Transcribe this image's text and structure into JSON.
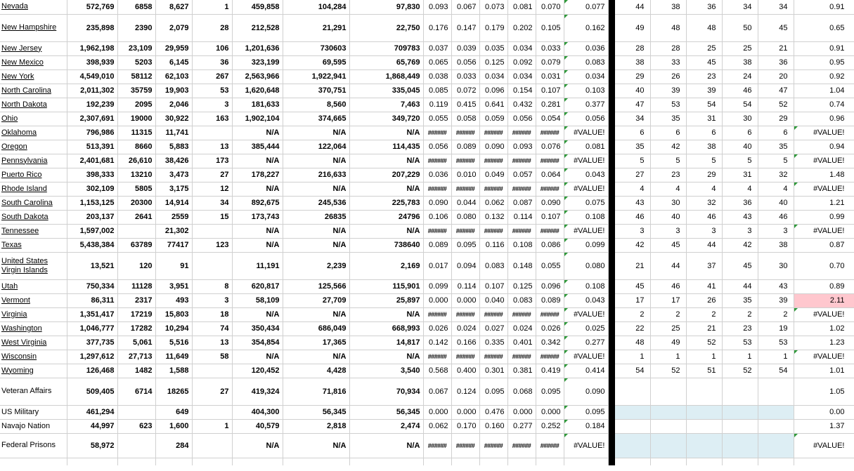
{
  "app": {
    "description": "Excel-style spreadsheet of state vaccination statistics with rank columns"
  },
  "colors": {
    "gridline": "#d0d0d0",
    "divider_bar": "#000000",
    "error_triangle_green": "#2e9939",
    "highlight_pink": "#ffc7ce",
    "highlight_light_blue": "#ddeef4",
    "text": "#000000"
  },
  "table": {
    "rows": [
      {
        "label": "Nevada",
        "underline": true,
        "two_line": false,
        "blue_ranks": false,
        "t_pink": false,
        "cells": [
          "572,769",
          "6858",
          "8,627",
          "1",
          "459,858",
          "104,284",
          "97,830",
          "0.093",
          "0.067",
          "0.073",
          "0.081",
          "0.070",
          "0.077",
          "44",
          "38",
          "36",
          "34",
          "34",
          "0.91"
        ]
      },
      {
        "label": "New Hampshire",
        "underline": true,
        "two_line": true,
        "blue_ranks": false,
        "t_pink": false,
        "cells": [
          "235,898",
          "2390",
          "2,079",
          "28",
          "212,528",
          "21,291",
          "22,750",
          "0.176",
          "0.147",
          "0.179",
          "0.202",
          "0.105",
          "0.162",
          "49",
          "48",
          "48",
          "50",
          "45",
          "0.65"
        ]
      },
      {
        "label": "New Jersey",
        "underline": true,
        "two_line": false,
        "blue_ranks": false,
        "t_pink": false,
        "cells": [
          "1,962,198",
          "23,109",
          "29,959",
          "106",
          "1,201,636",
          "730603",
          "709783",
          "0.037",
          "0.039",
          "0.035",
          "0.034",
          "0.033",
          "0.036",
          "28",
          "28",
          "25",
          "25",
          "21",
          "0.91"
        ]
      },
      {
        "label": "New Mexico",
        "underline": true,
        "two_line": false,
        "blue_ranks": false,
        "t_pink": false,
        "cells": [
          "398,939",
          "5203",
          "6,145",
          "36",
          "323,199",
          "69,595",
          "65,769",
          "0.065",
          "0.056",
          "0.125",
          "0.092",
          "0.079",
          "0.083",
          "38",
          "33",
          "45",
          "38",
          "36",
          "0.95"
        ]
      },
      {
        "label": "New York",
        "underline": true,
        "two_line": false,
        "blue_ranks": false,
        "t_pink": false,
        "cells": [
          "4,549,010",
          "58112",
          "62,103",
          "267",
          "2,563,966",
          "1,922,941",
          "1,868,449",
          "0.038",
          "0.033",
          "0.034",
          "0.034",
          "0.031",
          "0.034",
          "29",
          "26",
          "23",
          "24",
          "20",
          "0.92"
        ]
      },
      {
        "label": "North Carolina",
        "underline": true,
        "two_line": false,
        "blue_ranks": false,
        "t_pink": false,
        "cells": [
          "2,011,302",
          "35759",
          "19,903",
          "53",
          "1,620,648",
          "370,751",
          "335,045",
          "0.085",
          "0.072",
          "0.096",
          "0.154",
          "0.107",
          "0.103",
          "40",
          "39",
          "39",
          "46",
          "47",
          "1.04"
        ]
      },
      {
        "label": "North Dakota",
        "underline": true,
        "two_line": false,
        "blue_ranks": false,
        "t_pink": false,
        "cells": [
          "192,239",
          "2095",
          "2,046",
          "3",
          "181,633",
          "8,560",
          "7,463",
          "0.119",
          "0.415",
          "0.641",
          "0.432",
          "0.281",
          "0.377",
          "47",
          "53",
          "54",
          "54",
          "52",
          "0.74"
        ]
      },
      {
        "label": "Ohio",
        "underline": true,
        "two_line": false,
        "blue_ranks": false,
        "t_pink": false,
        "cells": [
          "2,307,691",
          "19000",
          "30,922",
          "163",
          "1,902,104",
          "374,665",
          "349,720",
          "0.055",
          "0.058",
          "0.059",
          "0.056",
          "0.054",
          "0.056",
          "34",
          "35",
          "31",
          "30",
          "29",
          "0.96"
        ]
      },
      {
        "label": "Oklahoma",
        "underline": true,
        "two_line": false,
        "blue_ranks": false,
        "t_pink": false,
        "cells": [
          "796,986",
          "11315",
          "11,741",
          "",
          "N/A",
          "N/A",
          "N/A",
          "######",
          "######",
          "######",
          "######",
          "######",
          "#VALUE!",
          "6",
          "6",
          "6",
          "6",
          "6",
          "#VALUE!"
        ]
      },
      {
        "label": "Oregon",
        "underline": true,
        "two_line": false,
        "blue_ranks": false,
        "t_pink": false,
        "cells": [
          "513,391",
          "8660",
          "5,883",
          "13",
          "385,444",
          "122,064",
          "114,435",
          "0.056",
          "0.089",
          "0.090",
          "0.093",
          "0.076",
          "0.081",
          "35",
          "42",
          "38",
          "40",
          "35",
          "0.94"
        ]
      },
      {
        "label": "Pennsylvania",
        "underline": true,
        "two_line": false,
        "blue_ranks": false,
        "t_pink": false,
        "cells": [
          "2,401,681",
          "26,610",
          "38,426",
          "173",
          "N/A",
          "N/A",
          "N/A",
          "######",
          "######",
          "######",
          "######",
          "######",
          "#VALUE!",
          "5",
          "5",
          "5",
          "5",
          "5",
          "#VALUE!"
        ]
      },
      {
        "label": "Puerto Rico",
        "underline": true,
        "two_line": false,
        "blue_ranks": false,
        "t_pink": false,
        "cells": [
          "398,333",
          "13210",
          "3,473",
          "27",
          "178,227",
          "216,633",
          "207,229",
          "0.036",
          "0.010",
          "0.049",
          "0.057",
          "0.064",
          "0.043",
          "27",
          "23",
          "29",
          "31",
          "32",
          "1.48"
        ]
      },
      {
        "label": "Rhode Island",
        "underline": true,
        "two_line": false,
        "blue_ranks": false,
        "t_pink": false,
        "cells": [
          "302,109",
          "5805",
          "3,175",
          "12",
          "N/A",
          "N/A",
          "N/A",
          "######",
          "######",
          "######",
          "######",
          "######",
          "#VALUE!",
          "4",
          "4",
          "4",
          "4",
          "4",
          "#VALUE!"
        ]
      },
      {
        "label": "South Carolina",
        "underline": true,
        "two_line": false,
        "blue_ranks": false,
        "t_pink": false,
        "cells": [
          "1,153,125",
          "20300",
          "14,914",
          "34",
          "892,675",
          "245,536",
          "225,783",
          "0.090",
          "0.044",
          "0.062",
          "0.087",
          "0.090",
          "0.075",
          "43",
          "30",
          "32",
          "36",
          "40",
          "1.21"
        ]
      },
      {
        "label": "South Dakota",
        "underline": true,
        "two_line": false,
        "blue_ranks": false,
        "t_pink": false,
        "cells": [
          "203,137",
          "2641",
          "2559",
          "15",
          "173,743",
          "26835",
          "24796",
          "0.106",
          "0.080",
          "0.132",
          "0.114",
          "0.107",
          "0.108",
          "46",
          "40",
          "46",
          "43",
          "46",
          "0.99"
        ]
      },
      {
        "label": "Tennessee",
        "underline": true,
        "two_line": false,
        "blue_ranks": false,
        "t_pink": false,
        "cells": [
          "1,597,002",
          "",
          "21,302",
          "",
          "N/A",
          "N/A",
          "N/A",
          "######",
          "######",
          "######",
          "######",
          "######",
          "#VALUE!",
          "3",
          "3",
          "3",
          "3",
          "3",
          "#VALUE!"
        ]
      },
      {
        "label": "Texas",
        "underline": true,
        "two_line": false,
        "blue_ranks": false,
        "t_pink": false,
        "cells": [
          "5,438,384",
          "63789",
          "77417",
          "123",
          "N/A",
          "N/A",
          "738640",
          "0.089",
          "0.095",
          "0.116",
          "0.108",
          "0.086",
          "0.099",
          "42",
          "45",
          "44",
          "42",
          "38",
          "0.87"
        ]
      },
      {
        "label": "United States Virgin Islands",
        "underline": true,
        "two_line": true,
        "blue_ranks": false,
        "t_pink": false,
        "cells": [
          "13,521",
          "120",
          "91",
          "",
          "11,191",
          "2,239",
          "2,169",
          "0.017",
          "0.094",
          "0.083",
          "0.148",
          "0.055",
          "0.080",
          "21",
          "44",
          "37",
          "45",
          "30",
          "0.70"
        ]
      },
      {
        "label": "Utah",
        "underline": true,
        "two_line": false,
        "blue_ranks": false,
        "t_pink": false,
        "cells": [
          "750,334",
          "11128",
          "3,951",
          "8",
          "620,817",
          "125,566",
          "115,901",
          "0.099",
          "0.114",
          "0.107",
          "0.125",
          "0.096",
          "0.108",
          "45",
          "46",
          "41",
          "44",
          "43",
          "0.89"
        ]
      },
      {
        "label": "Vermont",
        "underline": true,
        "two_line": false,
        "blue_ranks": false,
        "t_pink": true,
        "cells": [
          "86,311",
          "2317",
          "493",
          "3",
          "58,109",
          "27,709",
          "25,897",
          "0.000",
          "0.000",
          "0.040",
          "0.083",
          "0.089",
          "0.043",
          "17",
          "17",
          "26",
          "35",
          "39",
          "2.11"
        ]
      },
      {
        "label": "Virginia",
        "underline": true,
        "two_line": false,
        "blue_ranks": false,
        "t_pink": false,
        "cells": [
          "1,351,417",
          "17219",
          "15,803",
          "18",
          "N/A",
          "N/A",
          "N/A",
          "######",
          "######",
          "######",
          "######",
          "######",
          "#VALUE!",
          "2",
          "2",
          "2",
          "2",
          "2",
          "#VALUE!"
        ]
      },
      {
        "label": "Washington",
        "underline": true,
        "two_line": false,
        "blue_ranks": false,
        "t_pink": false,
        "cells": [
          "1,046,777",
          "17282",
          "10,294",
          "74",
          "350,434",
          "686,049",
          "668,993",
          "0.026",
          "0.024",
          "0.027",
          "0.024",
          "0.026",
          "0.025",
          "22",
          "25",
          "21",
          "23",
          "19",
          "1.02"
        ]
      },
      {
        "label": "West Virginia",
        "underline": true,
        "two_line": false,
        "blue_ranks": false,
        "t_pink": false,
        "cells": [
          "377,735",
          "5,061",
          "5,516",
          "13",
          "354,854",
          "17,365",
          "14,817",
          "0.142",
          "0.166",
          "0.335",
          "0.401",
          "0.342",
          "0.277",
          "48",
          "49",
          "52",
          "53",
          "53",
          "1.23"
        ]
      },
      {
        "label": "Wisconsin",
        "underline": true,
        "two_line": false,
        "blue_ranks": false,
        "t_pink": false,
        "cells": [
          "1,297,612",
          "27,713",
          "11,649",
          "58",
          "N/A",
          "N/A",
          "N/A",
          "######",
          "######",
          "######",
          "######",
          "######",
          "#VALUE!",
          "1",
          "1",
          "1",
          "1",
          "1",
          "#VALUE!"
        ]
      },
      {
        "label": "Wyoming",
        "underline": true,
        "two_line": false,
        "blue_ranks": false,
        "t_pink": false,
        "cells": [
          "126,468",
          "1482",
          "1,588",
          "",
          "120,452",
          "4,428",
          "3,540",
          "0.568",
          "0.400",
          "0.301",
          "0.381",
          "0.419",
          "0.414",
          "54",
          "52",
          "51",
          "52",
          "54",
          "1.01"
        ]
      },
      {
        "label": "Veteran Affairs",
        "underline": false,
        "two_line": true,
        "blue_ranks": false,
        "t_pink": false,
        "cells": [
          "509,405",
          "6714",
          "18265",
          "27",
          "419,324",
          "71,816",
          "70,934",
          "0.067",
          "0.124",
          "0.095",
          "0.068",
          "0.095",
          "0.090",
          "",
          "",
          "",
          "",
          "",
          "1.05"
        ]
      },
      {
        "label": "US Military",
        "underline": false,
        "two_line": false,
        "blue_ranks": true,
        "t_pink": false,
        "cells": [
          "461,294",
          "",
          "649",
          "",
          "404,300",
          "56,345",
          "56,345",
          "0.000",
          "0.000",
          "0.476",
          "0.000",
          "0.000",
          "0.095",
          "",
          "",
          "",
          "",
          "",
          "0.00"
        ]
      },
      {
        "label": "Navajo Nation",
        "underline": false,
        "two_line": false,
        "blue_ranks": false,
        "t_pink": false,
        "cells": [
          "44,997",
          "623",
          "1,600",
          "1",
          "40,579",
          "2,818",
          "2,474",
          "0.062",
          "0.170",
          "0.160",
          "0.277",
          "0.252",
          "0.184",
          "",
          "",
          "",
          "",
          "",
          "1.37"
        ]
      },
      {
        "label": "Federal Prisons",
        "underline": false,
        "two_line": true,
        "blue_ranks": true,
        "t_pink": false,
        "cells": [
          "58,972",
          "",
          "284",
          "",
          "N/A",
          "N/A",
          "N/A",
          "######",
          "######",
          "######",
          "######",
          "######",
          "#VALUE!",
          "",
          "",
          "",
          "",
          "",
          "#VALUE!"
        ]
      }
    ]
  }
}
